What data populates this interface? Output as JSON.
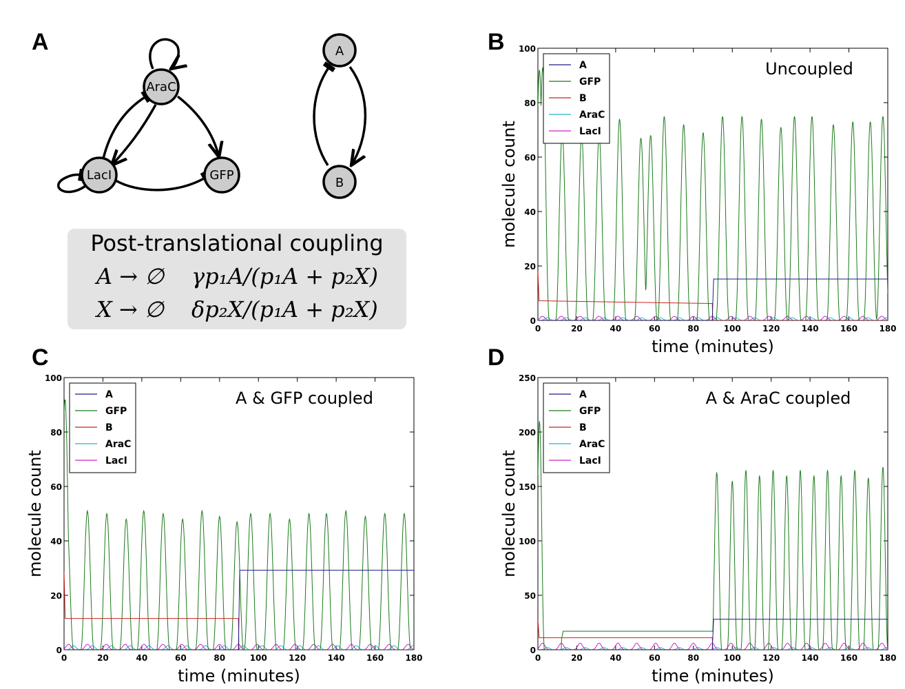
{
  "figure": {
    "panel_labels": [
      "A",
      "B",
      "C",
      "D"
    ]
  },
  "network": {
    "nodes": [
      "AraC",
      "LacI",
      "GFP",
      "A",
      "B"
    ]
  },
  "coupling_box": {
    "title": "Post-translational coupling",
    "reactions": [
      {
        "reaction": "A → ∅",
        "rate": "γp₁A/(p₁A + p₂X)"
      },
      {
        "reaction": "X → ∅",
        "rate": "δp₂X/(p₁A + p₂X)"
      }
    ]
  },
  "colors": {
    "A": "#1a1a8c",
    "GFP": "#1a7a1a",
    "B": "#cc2222",
    "AraC": "#22b8cc",
    "LacI": "#cc22cc",
    "node_fill": "#cccccc",
    "box_fill": "#e3e3e3"
  },
  "chart_data": [
    {
      "panel": "B",
      "type": "line",
      "title": "Uncoupled",
      "xlabel": "time (minutes)",
      "ylabel": "molecule count",
      "xlim": [
        0,
        180
      ],
      "ylim": [
        0,
        100
      ],
      "xticks": [
        0,
        20,
        40,
        60,
        80,
        100,
        120,
        140,
        160,
        180
      ],
      "yticks": [
        0,
        20,
        40,
        60,
        80,
        100
      ],
      "legend": [
        "A",
        "GFP",
        "B",
        "AraC",
        "LacI"
      ],
      "legend_position": "top-left",
      "switch_time": 90,
      "series": [
        {
          "name": "A",
          "before": 0,
          "after": 15.2
        },
        {
          "name": "B",
          "before": 7.2,
          "end_before_switch": 6.2,
          "after": 0
        },
        {
          "name": "GFP",
          "peak_times": [
            0.8,
            2.5,
            12.5,
            22.5,
            31.5,
            42,
            53,
            58,
            65,
            75,
            85,
            95,
            105,
            115,
            125,
            132,
            141,
            152,
            162,
            171,
            177.5
          ],
          "peak_values": [
            92,
            93,
            69,
            68,
            68,
            74,
            67,
            68,
            75,
            72,
            69,
            75,
            75,
            74,
            71,
            75,
            75,
            72,
            73,
            73,
            75
          ]
        },
        {
          "name": "AraC",
          "peak_value": 1.0
        },
        {
          "name": "LacI",
          "peak_value": 1.5
        }
      ]
    },
    {
      "panel": "C",
      "type": "line",
      "title": "A & GFP coupled",
      "xlabel": "time (minutes)",
      "ylabel": "molecule count",
      "xlim": [
        0,
        180
      ],
      "ylim": [
        0,
        100
      ],
      "xticks": [
        0,
        20,
        40,
        60,
        80,
        100,
        120,
        140,
        160,
        180
      ],
      "yticks": [
        0,
        20,
        40,
        60,
        80,
        100
      ],
      "legend": [
        "A",
        "GFP",
        "B",
        "AraC",
        "LacI"
      ],
      "legend_position": "top-left",
      "switch_time": 90,
      "series": [
        {
          "name": "A",
          "before": 0,
          "after": 29.2
        },
        {
          "name": "B",
          "before": 11.5,
          "end_before_switch": 11.5,
          "after": 0
        },
        {
          "name": "GFP",
          "peak_times": [
            0.5,
            1.5,
            12,
            22,
            32,
            41,
            51,
            61,
            71,
            80,
            89,
            96,
            106,
            116,
            126,
            135,
            145,
            155,
            165,
            175
          ],
          "peak_values": [
            92,
            46,
            51,
            50,
            48,
            51,
            50,
            48,
            51,
            49,
            47,
            50,
            50,
            48,
            50,
            50,
            51,
            49,
            50,
            50
          ]
        },
        {
          "name": "AraC",
          "peak_value": 1.5
        },
        {
          "name": "LacI",
          "peak_value": 2.0
        }
      ]
    },
    {
      "panel": "D",
      "type": "line",
      "title": "A & AraC coupled",
      "xlabel": "time (minutes)",
      "ylabel": "molecule count",
      "xlim": [
        0,
        180
      ],
      "ylim": [
        0,
        250
      ],
      "xticks": [
        0,
        20,
        40,
        60,
        80,
        100,
        120,
        140,
        160,
        180
      ],
      "yticks": [
        0,
        50,
        100,
        150,
        200,
        250
      ],
      "legend": [
        "A",
        "GFP",
        "B",
        "AraC",
        "LacI"
      ],
      "legend_position": "top-left",
      "switch_time": 90,
      "series": [
        {
          "name": "A",
          "before": 0,
          "after": 28
        },
        {
          "name": "B",
          "before": 11,
          "end_before_switch": 11,
          "after": 0
        },
        {
          "name": "GFP",
          "plateau_before": 17,
          "plateau_start": 12,
          "peak_times": [
            0.8,
            92,
            100,
            107,
            114,
            121,
            128,
            135,
            142,
            149,
            156,
            163,
            170,
            177.5
          ],
          "peak_values": [
            210,
            163,
            155,
            165,
            160,
            165,
            160,
            165,
            160,
            165,
            160,
            165,
            158,
            168
          ]
        },
        {
          "name": "AraC",
          "peak_value": 2.0
        },
        {
          "name": "LacI",
          "peak_value": 6.0
        }
      ]
    }
  ]
}
